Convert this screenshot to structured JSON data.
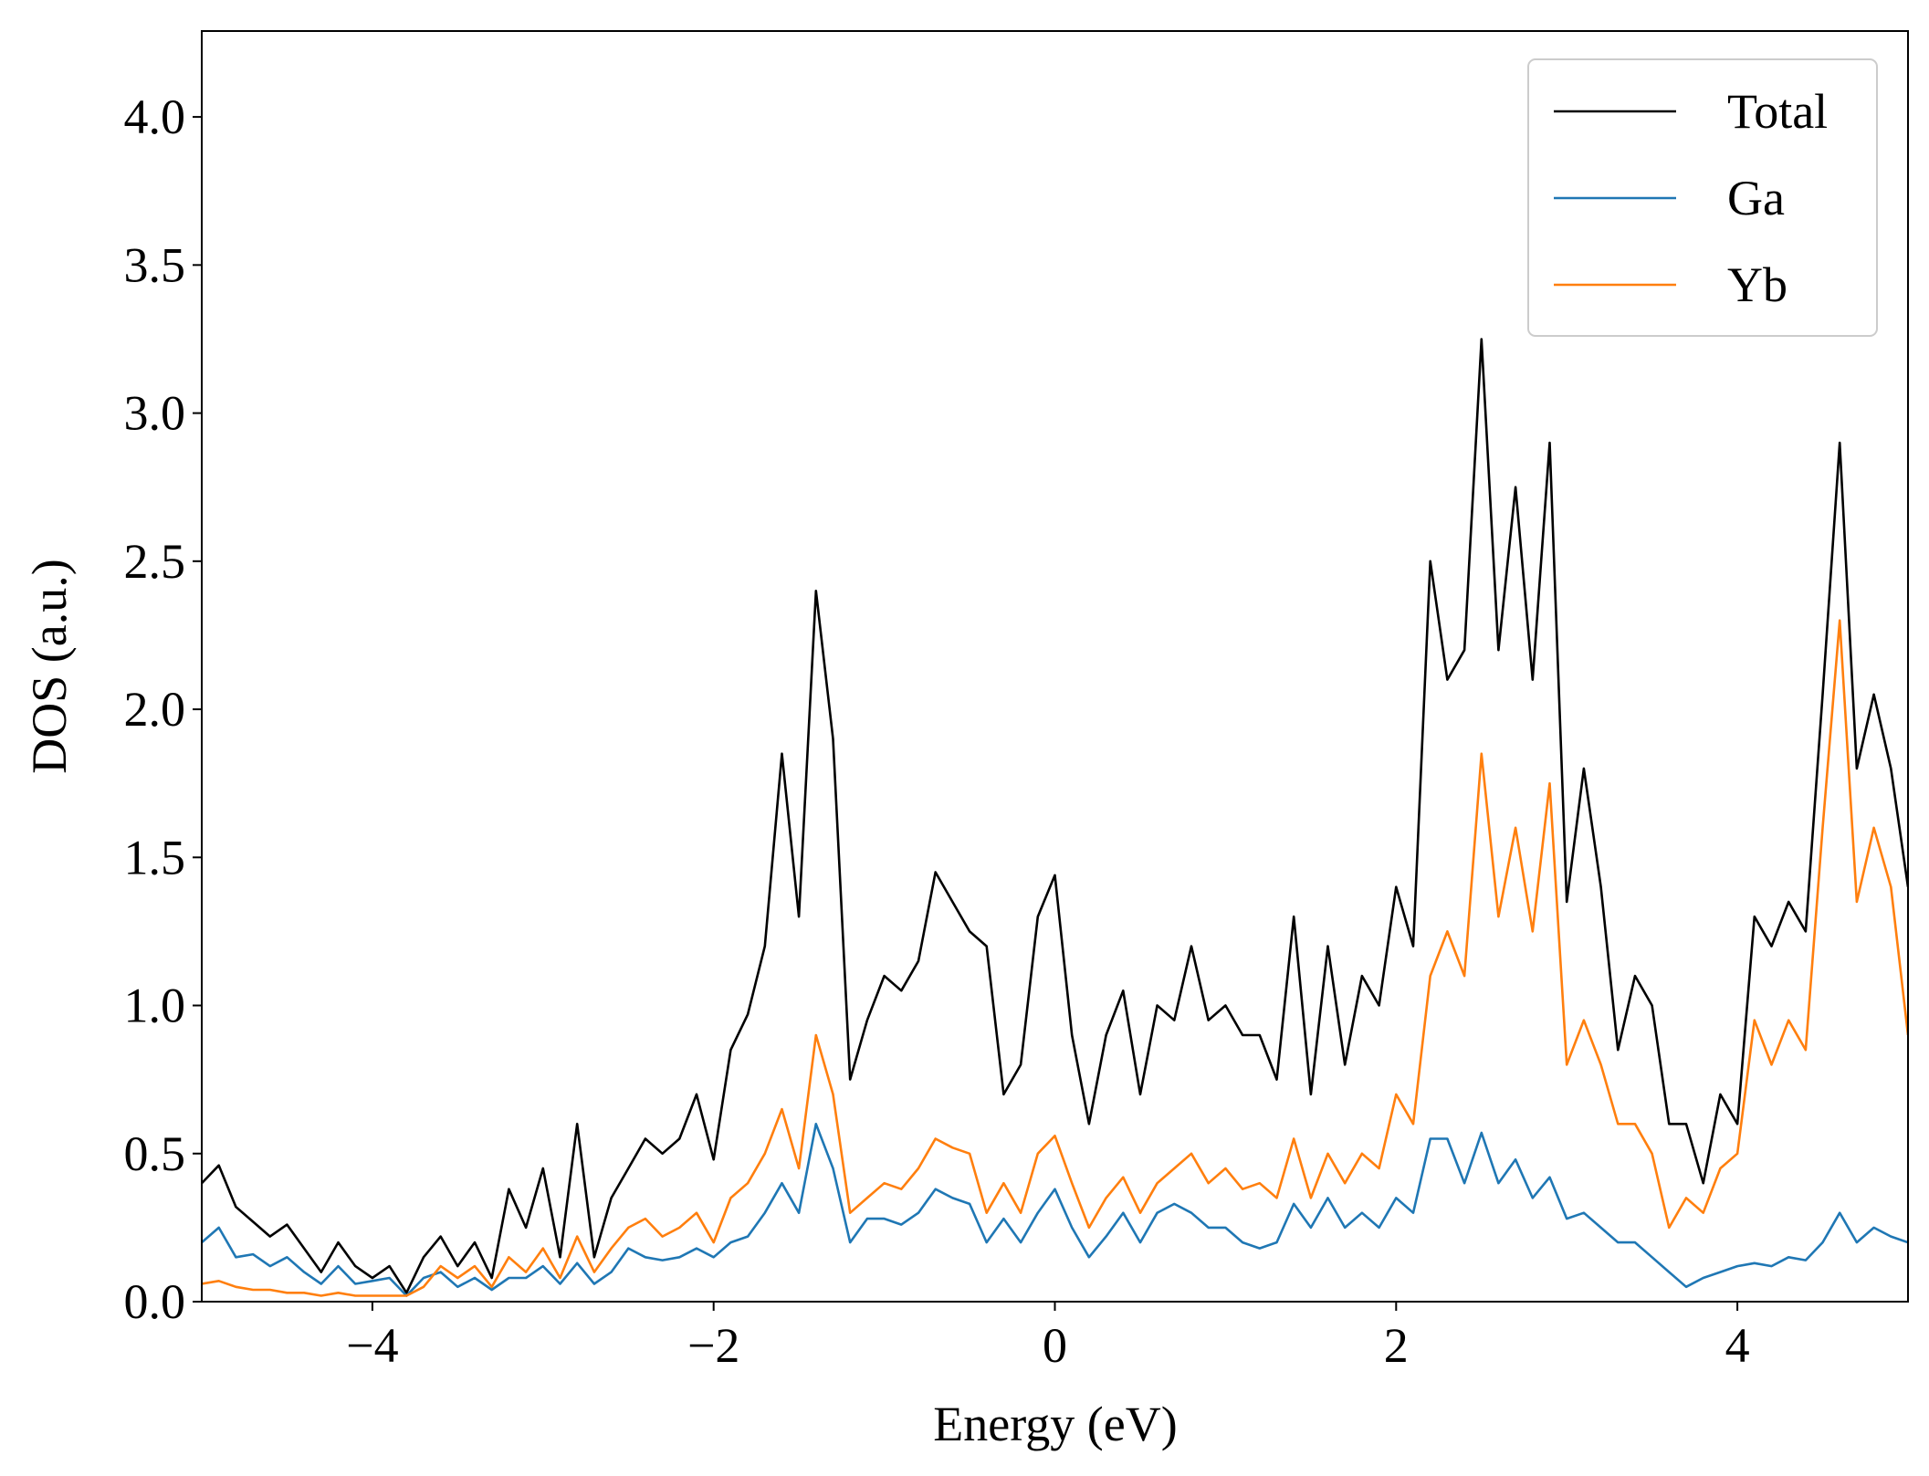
{
  "chart_data": {
    "type": "line",
    "xlabel": "Energy (eV)",
    "ylabel": "DOS (a.u.)",
    "x": [
      -5.0,
      -4.9,
      -4.8,
      -4.7,
      -4.6,
      -4.5,
      -4.4,
      -4.3,
      -4.2,
      -4.1,
      -4.0,
      -3.9,
      -3.8,
      -3.7,
      -3.6,
      -3.5,
      -3.4,
      -3.3,
      -3.2,
      -3.1,
      -3.0,
      -2.9,
      -2.8,
      -2.7,
      -2.6,
      -2.5,
      -2.4,
      -2.3,
      -2.2,
      -2.1,
      -2.0,
      -1.9,
      -1.8,
      -1.7,
      -1.6,
      -1.5,
      -1.4,
      -1.3,
      -1.2,
      -1.1,
      -1.0,
      -0.9,
      -0.8,
      -0.7,
      -0.6,
      -0.5,
      -0.4,
      -0.3,
      -0.2,
      -0.1,
      0.0,
      0.1,
      0.2,
      0.3,
      0.4,
      0.5,
      0.6,
      0.7,
      0.8,
      0.9,
      1.0,
      1.1,
      1.2,
      1.3,
      1.4,
      1.5,
      1.6,
      1.7,
      1.8,
      1.9,
      2.0,
      2.1,
      2.2,
      2.3,
      2.4,
      2.5,
      2.6,
      2.7,
      2.8,
      2.9,
      3.0,
      3.1,
      3.2,
      3.3,
      3.4,
      3.5,
      3.6,
      3.7,
      3.8,
      3.9,
      4.0,
      4.1,
      4.2,
      4.3,
      4.4,
      4.5,
      4.6,
      4.7,
      4.8,
      4.9,
      5.0
    ],
    "series": [
      {
        "name": "Total",
        "color": "#000000",
        "values": [
          0.4,
          0.46,
          0.32,
          0.27,
          0.22,
          0.26,
          0.18,
          0.1,
          0.2,
          0.12,
          0.08,
          0.12,
          0.03,
          0.15,
          0.22,
          0.12,
          0.2,
          0.08,
          0.38,
          0.25,
          0.45,
          0.15,
          0.6,
          0.15,
          0.35,
          0.45,
          0.55,
          0.5,
          0.55,
          0.7,
          0.48,
          0.85,
          0.97,
          1.2,
          1.85,
          1.3,
          2.4,
          1.9,
          0.75,
          0.95,
          1.1,
          1.05,
          1.15,
          1.45,
          1.35,
          1.25,
          1.2,
          0.7,
          0.8,
          1.3,
          1.44,
          0.9,
          0.6,
          0.9,
          1.05,
          0.7,
          1.0,
          0.95,
          1.2,
          0.95,
          1.0,
          0.9,
          0.9,
          0.75,
          1.3,
          0.7,
          1.2,
          0.8,
          1.1,
          1.0,
          1.4,
          1.2,
          2.5,
          2.1,
          2.2,
          3.25,
          2.2,
          2.75,
          2.1,
          2.9,
          1.35,
          1.8,
          1.4,
          0.85,
          1.1,
          1.0,
          0.6,
          0.6,
          0.4,
          0.7,
          0.6,
          1.3,
          1.2,
          1.35,
          1.25,
          2.05,
          2.9,
          1.8,
          2.05,
          1.8,
          1.4
        ]
      },
      {
        "name": "Ga",
        "color": "#1f77b4",
        "values": [
          0.2,
          0.25,
          0.15,
          0.16,
          0.12,
          0.15,
          0.1,
          0.06,
          0.12,
          0.06,
          0.07,
          0.08,
          0.02,
          0.08,
          0.1,
          0.05,
          0.08,
          0.04,
          0.08,
          0.08,
          0.12,
          0.06,
          0.13,
          0.06,
          0.1,
          0.18,
          0.15,
          0.14,
          0.15,
          0.18,
          0.15,
          0.2,
          0.22,
          0.3,
          0.4,
          0.3,
          0.6,
          0.45,
          0.2,
          0.28,
          0.28,
          0.26,
          0.3,
          0.38,
          0.35,
          0.33,
          0.2,
          0.28,
          0.2,
          0.3,
          0.38,
          0.25,
          0.15,
          0.22,
          0.3,
          0.2,
          0.3,
          0.33,
          0.3,
          0.25,
          0.25,
          0.2,
          0.18,
          0.2,
          0.33,
          0.25,
          0.35,
          0.25,
          0.3,
          0.25,
          0.35,
          0.3,
          0.55,
          0.55,
          0.4,
          0.57,
          0.4,
          0.48,
          0.35,
          0.42,
          0.28,
          0.3,
          0.25,
          0.2,
          0.2,
          0.15,
          0.1,
          0.05,
          0.08,
          0.1,
          0.12,
          0.13,
          0.12,
          0.15,
          0.14,
          0.2,
          0.3,
          0.2,
          0.25,
          0.22,
          0.2
        ]
      },
      {
        "name": "Yb",
        "color": "#ff7f0e",
        "values": [
          0.06,
          0.07,
          0.05,
          0.04,
          0.04,
          0.03,
          0.03,
          0.02,
          0.03,
          0.02,
          0.02,
          0.02,
          0.02,
          0.05,
          0.12,
          0.08,
          0.12,
          0.05,
          0.15,
          0.1,
          0.18,
          0.08,
          0.22,
          0.1,
          0.18,
          0.25,
          0.28,
          0.22,
          0.25,
          0.3,
          0.2,
          0.35,
          0.4,
          0.5,
          0.65,
          0.45,
          0.9,
          0.7,
          0.3,
          0.35,
          0.4,
          0.38,
          0.45,
          0.55,
          0.52,
          0.5,
          0.3,
          0.4,
          0.3,
          0.5,
          0.56,
          0.4,
          0.25,
          0.35,
          0.42,
          0.3,
          0.4,
          0.45,
          0.5,
          0.4,
          0.45,
          0.38,
          0.4,
          0.35,
          0.55,
          0.35,
          0.5,
          0.4,
          0.5,
          0.45,
          0.7,
          0.6,
          1.1,
          1.25,
          1.1,
          1.85,
          1.3,
          1.6,
          1.25,
          1.75,
          0.8,
          0.95,
          0.8,
          0.6,
          0.6,
          0.5,
          0.25,
          0.35,
          0.3,
          0.45,
          0.5,
          0.95,
          0.8,
          0.95,
          0.85,
          1.6,
          2.3,
          1.35,
          1.6,
          1.4,
          0.9
        ]
      }
    ],
    "xlim": [
      -5,
      5
    ],
    "xticks": [
      {
        "value": -4,
        "label": "−4"
      },
      {
        "value": -2,
        "label": "−2"
      },
      0,
      2,
      4
    ],
    "ylim": [
      0,
      4.29
    ],
    "yticks": [
      {
        "value": 0,
        "label": "0.0"
      },
      0.5,
      {
        "value": 1,
        "label": "1.0"
      },
      1.5,
      {
        "value": 2,
        "label": "2.0"
      },
      2.5,
      {
        "value": 3,
        "label": "3.0"
      },
      3.5,
      {
        "value": 4,
        "label": "4.0"
      }
    ],
    "legend": "upper right"
  }
}
